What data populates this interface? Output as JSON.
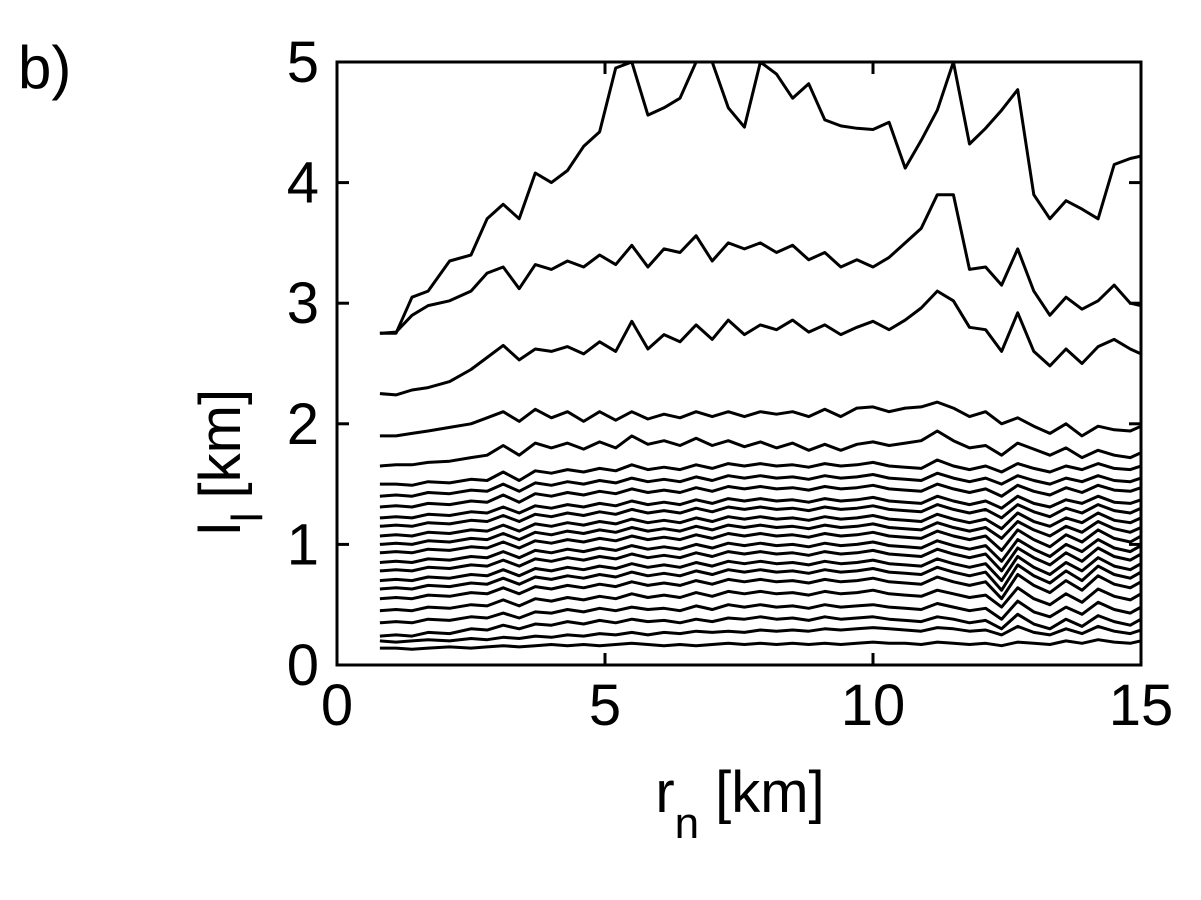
{
  "panel_label": "b)",
  "chart_data": {
    "type": "line",
    "xlim": [
      0,
      15
    ],
    "ylim": [
      0,
      5
    ],
    "xticks": [
      "0",
      "5",
      "10",
      "15"
    ],
    "yticks": [
      "0",
      "1",
      "2",
      "3",
      "4",
      "5"
    ],
    "xlabel": {
      "main": "r",
      "sub": "n",
      "unit": "[km]"
    },
    "ylabel": {
      "main": "l",
      "sub": "l",
      "unit": "[km]"
    },
    "grid": false,
    "legend": "none",
    "line_color": "#000000",
    "x": [
      0.8,
      1.1,
      1.4,
      1.7,
      2.1,
      2.5,
      2.8,
      3.1,
      3.4,
      3.7,
      4.0,
      4.3,
      4.6,
      4.9,
      5.2,
      5.5,
      5.8,
      6.1,
      6.4,
      6.7,
      7.0,
      7.3,
      7.6,
      7.9,
      8.2,
      8.5,
      8.8,
      9.1,
      9.4,
      9.7,
      10.0,
      10.3,
      10.6,
      10.9,
      11.2,
      11.5,
      11.8,
      12.1,
      12.4,
      12.7,
      13.0,
      13.3,
      13.6,
      13.9,
      14.2,
      14.5,
      14.8,
      15.0
    ],
    "series": [
      {
        "values": [
          0.14,
          0.14,
          0.13,
          0.14,
          0.15,
          0.14,
          0.15,
          0.16,
          0.15,
          0.16,
          0.17,
          0.16,
          0.17,
          0.16,
          0.17,
          0.18,
          0.17,
          0.16,
          0.17,
          0.16,
          0.17,
          0.18,
          0.17,
          0.18,
          0.17,
          0.18,
          0.17,
          0.18,
          0.17,
          0.18,
          0.19,
          0.18,
          0.18,
          0.17,
          0.19,
          0.18,
          0.17,
          0.18,
          0.16,
          0.19,
          0.18,
          0.17,
          0.2,
          0.18,
          0.21,
          0.19,
          0.18,
          0.2
        ]
      },
      {
        "values": [
          0.2,
          0.19,
          0.2,
          0.21,
          0.2,
          0.22,
          0.21,
          0.23,
          0.22,
          0.24,
          0.23,
          0.25,
          0.24,
          0.26,
          0.25,
          0.27,
          0.25,
          0.27,
          0.26,
          0.28,
          0.27,
          0.28,
          0.27,
          0.29,
          0.28,
          0.29,
          0.28,
          0.3,
          0.29,
          0.3,
          0.31,
          0.3,
          0.29,
          0.28,
          0.31,
          0.3,
          0.28,
          0.29,
          0.25,
          0.32,
          0.27,
          0.25,
          0.3,
          0.26,
          0.32,
          0.28,
          0.26,
          0.29
        ]
      },
      {
        "values": [
          0.24,
          0.25,
          0.24,
          0.27,
          0.26,
          0.3,
          0.29,
          0.33,
          0.3,
          0.34,
          0.33,
          0.36,
          0.34,
          0.37,
          0.35,
          0.38,
          0.36,
          0.37,
          0.35,
          0.38,
          0.36,
          0.39,
          0.38,
          0.4,
          0.38,
          0.39,
          0.37,
          0.4,
          0.38,
          0.39,
          0.4,
          0.38,
          0.37,
          0.36,
          0.4,
          0.38,
          0.35,
          0.37,
          0.3,
          0.42,
          0.34,
          0.3,
          0.38,
          0.32,
          0.41,
          0.36,
          0.33,
          0.38
        ]
      },
      {
        "values": [
          0.35,
          0.36,
          0.35,
          0.38,
          0.37,
          0.4,
          0.39,
          0.43,
          0.39,
          0.44,
          0.43,
          0.46,
          0.44,
          0.47,
          0.45,
          0.48,
          0.46,
          0.47,
          0.45,
          0.49,
          0.46,
          0.5,
          0.48,
          0.5,
          0.48,
          0.49,
          0.47,
          0.5,
          0.48,
          0.49,
          0.5,
          0.48,
          0.47,
          0.46,
          0.51,
          0.48,
          0.45,
          0.47,
          0.38,
          0.53,
          0.44,
          0.4,
          0.48,
          0.42,
          0.52,
          0.46,
          0.43,
          0.48
        ]
      },
      {
        "values": [
          0.45,
          0.46,
          0.45,
          0.48,
          0.47,
          0.5,
          0.49,
          0.54,
          0.49,
          0.55,
          0.53,
          0.56,
          0.54,
          0.57,
          0.55,
          0.59,
          0.56,
          0.58,
          0.56,
          0.6,
          0.57,
          0.61,
          0.59,
          0.61,
          0.59,
          0.6,
          0.58,
          0.61,
          0.59,
          0.6,
          0.62,
          0.59,
          0.58,
          0.57,
          0.62,
          0.59,
          0.56,
          0.58,
          0.48,
          0.64,
          0.55,
          0.5,
          0.59,
          0.52,
          0.63,
          0.57,
          0.54,
          0.59
        ]
      },
      {
        "values": [
          0.55,
          0.56,
          0.55,
          0.58,
          0.57,
          0.6,
          0.59,
          0.64,
          0.59,
          0.65,
          0.63,
          0.66,
          0.64,
          0.67,
          0.65,
          0.69,
          0.66,
          0.68,
          0.66,
          0.7,
          0.67,
          0.71,
          0.69,
          0.71,
          0.69,
          0.7,
          0.68,
          0.71,
          0.69,
          0.7,
          0.72,
          0.69,
          0.68,
          0.67,
          0.73,
          0.69,
          0.66,
          0.69,
          0.55,
          0.75,
          0.66,
          0.6,
          0.7,
          0.62,
          0.74,
          0.67,
          0.64,
          0.69
        ]
      },
      {
        "values": [
          0.63,
          0.64,
          0.63,
          0.66,
          0.65,
          0.68,
          0.67,
          0.72,
          0.67,
          0.73,
          0.71,
          0.74,
          0.72,
          0.75,
          0.73,
          0.77,
          0.74,
          0.76,
          0.74,
          0.78,
          0.75,
          0.79,
          0.77,
          0.79,
          0.77,
          0.78,
          0.76,
          0.79,
          0.77,
          0.78,
          0.8,
          0.77,
          0.76,
          0.75,
          0.81,
          0.77,
          0.74,
          0.77,
          0.62,
          0.83,
          0.74,
          0.68,
          0.78,
          0.7,
          0.82,
          0.75,
          0.72,
          0.77
        ]
      },
      {
        "values": [
          0.7,
          0.71,
          0.7,
          0.73,
          0.72,
          0.75,
          0.74,
          0.79,
          0.74,
          0.8,
          0.78,
          0.81,
          0.79,
          0.82,
          0.8,
          0.84,
          0.81,
          0.83,
          0.81,
          0.85,
          0.82,
          0.86,
          0.84,
          0.86,
          0.84,
          0.85,
          0.83,
          0.86,
          0.84,
          0.85,
          0.87,
          0.84,
          0.83,
          0.82,
          0.88,
          0.84,
          0.81,
          0.84,
          0.7,
          0.9,
          0.81,
          0.75,
          0.85,
          0.78,
          0.89,
          0.82,
          0.79,
          0.84
        ]
      },
      {
        "values": [
          0.78,
          0.79,
          0.78,
          0.81,
          0.8,
          0.83,
          0.82,
          0.87,
          0.82,
          0.88,
          0.86,
          0.89,
          0.87,
          0.9,
          0.88,
          0.92,
          0.89,
          0.91,
          0.89,
          0.93,
          0.9,
          0.94,
          0.92,
          0.94,
          0.92,
          0.93,
          0.91,
          0.94,
          0.92,
          0.93,
          0.95,
          0.92,
          0.91,
          0.9,
          0.96,
          0.92,
          0.89,
          0.92,
          0.78,
          0.97,
          0.89,
          0.83,
          0.93,
          0.86,
          0.97,
          0.9,
          0.87,
          0.92
        ]
      },
      {
        "values": [
          0.85,
          0.86,
          0.85,
          0.88,
          0.87,
          0.9,
          0.89,
          0.94,
          0.89,
          0.95,
          0.93,
          0.96,
          0.94,
          0.97,
          0.95,
          0.99,
          0.96,
          0.98,
          0.96,
          1.0,
          0.97,
          1.01,
          0.99,
          1.01,
          0.99,
          1.0,
          0.98,
          1.01,
          0.99,
          1.0,
          1.02,
          0.99,
          0.98,
          0.97,
          1.03,
          0.99,
          0.96,
          0.99,
          0.86,
          1.04,
          0.96,
          0.9,
          1.0,
          0.94,
          1.04,
          0.97,
          0.94,
          0.99
        ]
      },
      {
        "values": [
          0.93,
          0.94,
          0.93,
          0.96,
          0.95,
          0.98,
          0.97,
          1.02,
          0.97,
          1.03,
          1.01,
          1.04,
          1.02,
          1.05,
          1.03,
          1.07,
          1.04,
          1.06,
          1.04,
          1.08,
          1.05,
          1.09,
          1.07,
          1.09,
          1.07,
          1.08,
          1.06,
          1.09,
          1.07,
          1.08,
          1.1,
          1.07,
          1.06,
          1.05,
          1.11,
          1.07,
          1.04,
          1.07,
          0.95,
          1.12,
          1.04,
          0.98,
          1.08,
          1.02,
          1.12,
          1.05,
          1.02,
          1.07
        ]
      },
      {
        "values": [
          1.0,
          1.01,
          1.0,
          1.03,
          1.02,
          1.05,
          1.04,
          1.09,
          1.04,
          1.1,
          1.08,
          1.11,
          1.09,
          1.12,
          1.1,
          1.14,
          1.11,
          1.13,
          1.11,
          1.15,
          1.12,
          1.16,
          1.14,
          1.16,
          1.14,
          1.15,
          1.13,
          1.16,
          1.14,
          1.15,
          1.17,
          1.14,
          1.13,
          1.12,
          1.18,
          1.14,
          1.11,
          1.14,
          1.05,
          1.19,
          1.12,
          1.07,
          1.15,
          1.1,
          1.19,
          1.13,
          1.1,
          1.14
        ]
      },
      {
        "values": [
          1.07,
          1.08,
          1.07,
          1.1,
          1.09,
          1.12,
          1.11,
          1.16,
          1.11,
          1.17,
          1.15,
          1.18,
          1.16,
          1.19,
          1.17,
          1.21,
          1.18,
          1.2,
          1.18,
          1.22,
          1.19,
          1.23,
          1.21,
          1.23,
          1.21,
          1.22,
          1.2,
          1.23,
          1.21,
          1.22,
          1.24,
          1.21,
          1.2,
          1.19,
          1.25,
          1.21,
          1.18,
          1.21,
          1.13,
          1.26,
          1.19,
          1.15,
          1.22,
          1.18,
          1.26,
          1.2,
          1.18,
          1.22
        ]
      },
      {
        "values": [
          1.15,
          1.16,
          1.15,
          1.18,
          1.17,
          1.2,
          1.19,
          1.24,
          1.19,
          1.25,
          1.23,
          1.26,
          1.24,
          1.27,
          1.25,
          1.29,
          1.26,
          1.28,
          1.26,
          1.3,
          1.27,
          1.31,
          1.29,
          1.31,
          1.29,
          1.3,
          1.28,
          1.31,
          1.29,
          1.3,
          1.32,
          1.29,
          1.28,
          1.27,
          1.33,
          1.29,
          1.26,
          1.29,
          1.22,
          1.33,
          1.27,
          1.23,
          1.3,
          1.26,
          1.33,
          1.28,
          1.26,
          1.3
        ]
      },
      {
        "values": [
          1.22,
          1.23,
          1.22,
          1.25,
          1.24,
          1.27,
          1.26,
          1.31,
          1.26,
          1.32,
          1.3,
          1.33,
          1.31,
          1.34,
          1.32,
          1.36,
          1.33,
          1.35,
          1.33,
          1.37,
          1.34,
          1.38,
          1.36,
          1.38,
          1.36,
          1.37,
          1.35,
          1.38,
          1.36,
          1.37,
          1.39,
          1.36,
          1.35,
          1.34,
          1.4,
          1.36,
          1.33,
          1.36,
          1.3,
          1.4,
          1.34,
          1.31,
          1.37,
          1.34,
          1.4,
          1.35,
          1.34,
          1.37
        ]
      },
      {
        "values": [
          1.31,
          1.32,
          1.31,
          1.34,
          1.33,
          1.36,
          1.35,
          1.41,
          1.35,
          1.42,
          1.4,
          1.43,
          1.41,
          1.44,
          1.42,
          1.46,
          1.43,
          1.45,
          1.43,
          1.47,
          1.44,
          1.48,
          1.46,
          1.48,
          1.46,
          1.47,
          1.45,
          1.48,
          1.46,
          1.47,
          1.49,
          1.46,
          1.45,
          1.44,
          1.5,
          1.46,
          1.43,
          1.46,
          1.4,
          1.49,
          1.44,
          1.41,
          1.47,
          1.43,
          1.49,
          1.45,
          1.44,
          1.47
        ]
      },
      {
        "values": [
          1.4,
          1.41,
          1.4,
          1.43,
          1.42,
          1.45,
          1.44,
          1.5,
          1.44,
          1.51,
          1.49,
          1.52,
          1.5,
          1.53,
          1.51,
          1.55,
          1.52,
          1.54,
          1.52,
          1.56,
          1.53,
          1.57,
          1.55,
          1.57,
          1.55,
          1.56,
          1.54,
          1.57,
          1.55,
          1.56,
          1.58,
          1.55,
          1.54,
          1.53,
          1.59,
          1.55,
          1.52,
          1.55,
          1.5,
          1.57,
          1.53,
          1.5,
          1.55,
          1.52,
          1.57,
          1.53,
          1.52,
          1.55
        ]
      },
      {
        "values": [
          1.5,
          1.5,
          1.49,
          1.52,
          1.51,
          1.54,
          1.53,
          1.6,
          1.53,
          1.61,
          1.59,
          1.62,
          1.6,
          1.63,
          1.61,
          1.66,
          1.62,
          1.64,
          1.62,
          1.66,
          1.63,
          1.67,
          1.65,
          1.67,
          1.65,
          1.66,
          1.64,
          1.67,
          1.65,
          1.66,
          1.68,
          1.65,
          1.64,
          1.63,
          1.7,
          1.65,
          1.62,
          1.65,
          1.6,
          1.67,
          1.63,
          1.6,
          1.65,
          1.62,
          1.67,
          1.63,
          1.62,
          1.65
        ]
      },
      {
        "values": [
          1.65,
          1.66,
          1.66,
          1.68,
          1.69,
          1.72,
          1.74,
          1.82,
          1.74,
          1.84,
          1.8,
          1.84,
          1.79,
          1.85,
          1.8,
          1.9,
          1.83,
          1.86,
          1.82,
          1.88,
          1.82,
          1.86,
          1.81,
          1.85,
          1.8,
          1.84,
          1.78,
          1.83,
          1.78,
          1.83,
          1.85,
          1.82,
          1.84,
          1.86,
          1.94,
          1.86,
          1.8,
          1.82,
          1.74,
          1.84,
          1.79,
          1.74,
          1.8,
          1.72,
          1.78,
          1.74,
          1.72,
          1.76
        ]
      },
      {
        "values": [
          1.9,
          1.9,
          1.92,
          1.94,
          1.97,
          2.0,
          2.05,
          2.1,
          2.02,
          2.12,
          2.05,
          2.1,
          2.02,
          2.1,
          2.03,
          2.1,
          2.04,
          2.08,
          2.05,
          2.1,
          2.06,
          2.1,
          2.06,
          2.1,
          2.08,
          2.1,
          2.06,
          2.12,
          2.06,
          2.13,
          2.14,
          2.1,
          2.13,
          2.14,
          2.18,
          2.13,
          2.06,
          2.1,
          2.0,
          2.05,
          1.98,
          1.92,
          2.0,
          1.9,
          1.98,
          1.95,
          1.94,
          1.98
        ]
      },
      {
        "values": [
          2.25,
          2.24,
          2.28,
          2.3,
          2.35,
          2.45,
          2.55,
          2.65,
          2.53,
          2.62,
          2.6,
          2.64,
          2.58,
          2.68,
          2.6,
          2.85,
          2.62,
          2.74,
          2.68,
          2.82,
          2.7,
          2.86,
          2.74,
          2.82,
          2.78,
          2.86,
          2.76,
          2.82,
          2.74,
          2.8,
          2.85,
          2.78,
          2.86,
          2.96,
          3.1,
          3.02,
          2.8,
          2.78,
          2.6,
          2.92,
          2.6,
          2.48,
          2.62,
          2.5,
          2.64,
          2.7,
          2.62,
          2.58
        ]
      },
      {
        "values": [
          2.75,
          2.76,
          2.9,
          2.98,
          3.02,
          3.1,
          3.25,
          3.3,
          3.12,
          3.32,
          3.28,
          3.35,
          3.3,
          3.4,
          3.32,
          3.48,
          3.3,
          3.45,
          3.42,
          3.56,
          3.35,
          3.5,
          3.45,
          3.5,
          3.42,
          3.48,
          3.36,
          3.42,
          3.3,
          3.36,
          3.3,
          3.38,
          3.5,
          3.62,
          3.9,
          3.9,
          3.28,
          3.3,
          3.15,
          3.45,
          3.1,
          2.9,
          3.05,
          2.95,
          3.02,
          3.15,
          3.0,
          2.98
        ]
      },
      {
        "values": [
          2.75,
          2.75,
          3.05,
          3.1,
          3.35,
          3.4,
          3.7,
          3.82,
          3.7,
          4.08,
          4.0,
          4.1,
          4.3,
          4.42,
          4.95,
          5.0,
          4.56,
          4.62,
          4.7,
          5.0,
          5.0,
          4.62,
          4.46,
          5.0,
          4.9,
          4.7,
          4.82,
          4.52,
          4.47,
          4.45,
          4.44,
          4.5,
          4.12,
          4.35,
          4.6,
          5.0,
          4.32,
          4.45,
          4.6,
          4.77,
          3.9,
          3.7,
          3.85,
          3.78,
          3.7,
          4.15,
          4.2,
          4.22
        ]
      }
    ]
  }
}
